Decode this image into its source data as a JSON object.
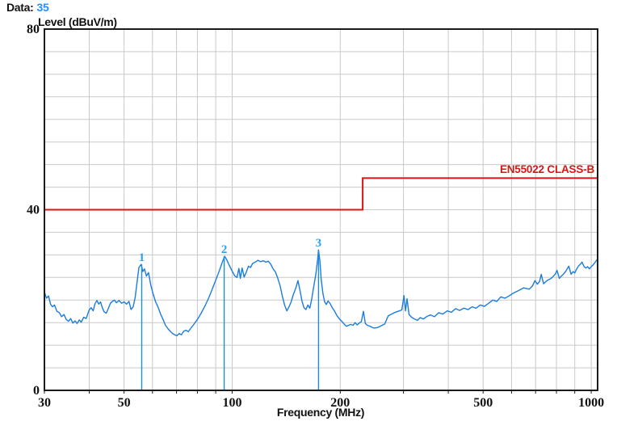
{
  "header": {
    "data_label": "Data:",
    "data_value": "35"
  },
  "chart_data": {
    "type": "line",
    "title": "Level (dBuV/m)",
    "xlabel": "Frequency (MHz)",
    "x_scale": "log",
    "xlim": [
      30,
      1042
    ],
    "ylim": [
      0,
      80
    ],
    "grid": true,
    "y_grid_step": 5,
    "y_ticks": [
      "80",
      "40",
      "0"
    ],
    "y_tick_values": [
      80,
      40,
      0
    ],
    "x_ticks": [
      "30",
      "50",
      "100",
      "200",
      "500",
      "1000"
    ],
    "x_tick_values": [
      30,
      50,
      100,
      200,
      500,
      1000
    ],
    "x_gridlines": [
      40,
      50,
      60,
      70,
      80,
      90,
      100,
      200,
      300,
      400,
      500,
      600,
      700,
      800,
      900,
      1000
    ],
    "colors": {
      "trace": "#1b7ce0",
      "limit": "#d81616",
      "marker_line": "#1b8ce8",
      "marker_label": "#2aa1f0",
      "value_accent": "#1e90ff",
      "grid": "#c9c9c9",
      "axis": "#1a1a1a"
    },
    "limit_line": {
      "label": "EN55022 CLASS-B",
      "points": [
        [
          30,
          40
        ],
        [
          231,
          40
        ],
        [
          231,
          47
        ],
        [
          1042,
          47
        ]
      ]
    },
    "markers": [
      {
        "label": "1",
        "freq": 56,
        "level_db": 27.9
      },
      {
        "label": "2",
        "freq": 95,
        "level_db": 29.7
      },
      {
        "label": "3",
        "freq": 174,
        "level_db": 31.1
      }
    ],
    "series": [
      {
        "name": "radiated-emission-trace",
        "points": [
          [
            30,
            21.8
          ],
          [
            30.4,
            20.4
          ],
          [
            30.8,
            20.9
          ],
          [
            31.2,
            19.1
          ],
          [
            31.6,
            18.5
          ],
          [
            32,
            18.9
          ],
          [
            32.5,
            17.5
          ],
          [
            33,
            17.2
          ],
          [
            33.5,
            16.3
          ],
          [
            34,
            16.8
          ],
          [
            34.5,
            15.7
          ],
          [
            35,
            15.3
          ],
          [
            35.5,
            15.9
          ],
          [
            36,
            14.9
          ],
          [
            36.5,
            15.4
          ],
          [
            37,
            14.8
          ],
          [
            37.5,
            15.6
          ],
          [
            38,
            15.1
          ],
          [
            38.6,
            16.2
          ],
          [
            39.2,
            15.9
          ],
          [
            40,
            17.8
          ],
          [
            40.5,
            18.3
          ],
          [
            41,
            17.6
          ],
          [
            41.5,
            19.2
          ],
          [
            42,
            19.9
          ],
          [
            42.5,
            19.1
          ],
          [
            43,
            19.6
          ],
          [
            43.5,
            18.3
          ],
          [
            44,
            17.4
          ],
          [
            44.6,
            17.1
          ],
          [
            45.2,
            18.1
          ],
          [
            45.8,
            19.3
          ],
          [
            46.4,
            19.7
          ],
          [
            47,
            20.0
          ],
          [
            47.6,
            19.4
          ],
          [
            48.4,
            19.9
          ],
          [
            49.2,
            19.3
          ],
          [
            50,
            19.6
          ],
          [
            50.8,
            19.1
          ],
          [
            51.6,
            19.7
          ],
          [
            52.3,
            17.9
          ],
          [
            53,
            18.5
          ],
          [
            53.7,
            20.6
          ],
          [
            54.3,
            23.8
          ],
          [
            55,
            27.2
          ],
          [
            55.8,
            27.9
          ],
          [
            56.4,
            26.3
          ],
          [
            57,
            26.9
          ],
          [
            57.7,
            25.3
          ],
          [
            58.5,
            26.1
          ],
          [
            59.3,
            23.4
          ],
          [
            60.2,
            21.4
          ],
          [
            61.2,
            19.6
          ],
          [
            62.2,
            18.4
          ],
          [
            63.2,
            16.9
          ],
          [
            64.2,
            15.7
          ],
          [
            65.2,
            14.4
          ],
          [
            66.2,
            13.7
          ],
          [
            67.2,
            13.1
          ],
          [
            68.2,
            12.6
          ],
          [
            69.2,
            12.3
          ],
          [
            70.2,
            12.1
          ],
          [
            71.2,
            12.6
          ],
          [
            72.2,
            12.3
          ],
          [
            73.3,
            13.1
          ],
          [
            74.4,
            13.3
          ],
          [
            75.5,
            13.0
          ],
          [
            76.6,
            13.7
          ],
          [
            78,
            14.5
          ],
          [
            80,
            15.7
          ],
          [
            82,
            17.1
          ],
          [
            84,
            18.7
          ],
          [
            86,
            20.4
          ],
          [
            88,
            22.4
          ],
          [
            90,
            24.4
          ],
          [
            92,
            26.4
          ],
          [
            94,
            28.5
          ],
          [
            95.3,
            29.7
          ],
          [
            96.6,
            28.9
          ],
          [
            98,
            27.8
          ],
          [
            100,
            26.4
          ],
          [
            101.8,
            25.3
          ],
          [
            103.2,
            25.0
          ],
          [
            104.4,
            27.0
          ],
          [
            105.4,
            24.8
          ],
          [
            106.6,
            27.1
          ],
          [
            108,
            25.1
          ],
          [
            109.5,
            26.2
          ],
          [
            111,
            27.5
          ],
          [
            112.5,
            27.2
          ],
          [
            114,
            28.1
          ],
          [
            116,
            28.4
          ],
          [
            118,
            28.8
          ],
          [
            120,
            28.5
          ],
          [
            122,
            28.7
          ],
          [
            124,
            28.4
          ],
          [
            126,
            28.6
          ],
          [
            128,
            28.0
          ],
          [
            130,
            26.9
          ],
          [
            132,
            26.2
          ],
          [
            134,
            24.8
          ],
          [
            136,
            23.2
          ],
          [
            138,
            20.8
          ],
          [
            140,
            18.9
          ],
          [
            142,
            17.6
          ],
          [
            144,
            18.5
          ],
          [
            146,
            19.6
          ],
          [
            148,
            21.2
          ],
          [
            150.5,
            22.7
          ],
          [
            152.5,
            24.3
          ],
          [
            154.5,
            22.1
          ],
          [
            156.5,
            19.8
          ],
          [
            158.5,
            18.3
          ],
          [
            160.5,
            17.9
          ],
          [
            162.5,
            18.9
          ],
          [
            164.5,
            18.2
          ],
          [
            166.5,
            20.1
          ],
          [
            168.5,
            22.7
          ],
          [
            171,
            25.7
          ],
          [
            173,
            29.0
          ],
          [
            174,
            31.1
          ],
          [
            175.5,
            28.7
          ],
          [
            177,
            24.6
          ],
          [
            179,
            21.4
          ],
          [
            181,
            19.6
          ],
          [
            183,
            19.0
          ],
          [
            185,
            19.8
          ],
          [
            187.5,
            19.2
          ],
          [
            190,
            18.3
          ],
          [
            193,
            17.5
          ],
          [
            196,
            16.5
          ],
          [
            199,
            15.8
          ],
          [
            202,
            15.3
          ],
          [
            205,
            14.7
          ],
          [
            208,
            14.2
          ],
          [
            211,
            14.4
          ],
          [
            214,
            14.6
          ],
          [
            217,
            14.4
          ],
          [
            220,
            15.0
          ],
          [
            223,
            14.5
          ],
          [
            226,
            14.9
          ],
          [
            229,
            15.2
          ],
          [
            232,
            17.5
          ],
          [
            235,
            14.8
          ],
          [
            238,
            14.4
          ],
          [
            242,
            14.2
          ],
          [
            248,
            13.8
          ],
          [
            254,
            13.9
          ],
          [
            260,
            14.3
          ],
          [
            266,
            14.7
          ],
          [
            272,
            16.5
          ],
          [
            278,
            16.9
          ],
          [
            285,
            17.3
          ],
          [
            292,
            17.6
          ],
          [
            297,
            17.8
          ],
          [
            301,
            21.0
          ],
          [
            304,
            17.6
          ],
          [
            307,
            20.3
          ],
          [
            311,
            16.8
          ],
          [
            316,
            16.2
          ],
          [
            322,
            15.8
          ],
          [
            328,
            15.5
          ],
          [
            334,
            16.1
          ],
          [
            341,
            15.8
          ],
          [
            349,
            16.4
          ],
          [
            357,
            16.7
          ],
          [
            366,
            16.3
          ],
          [
            376,
            17.2
          ],
          [
            386,
            16.9
          ],
          [
            397,
            17.6
          ],
          [
            408,
            17.3
          ],
          [
            419,
            18.1
          ],
          [
            430,
            17.7
          ],
          [
            442,
            18.2
          ],
          [
            454,
            17.9
          ],
          [
            466,
            18.5
          ],
          [
            478,
            18.2
          ],
          [
            491,
            18.9
          ],
          [
            504,
            18.6
          ],
          [
            518,
            19.3
          ],
          [
            532,
            20.0
          ],
          [
            546,
            19.7
          ],
          [
            560,
            20.7
          ],
          [
            575,
            20.4
          ],
          [
            590,
            20.9
          ],
          [
            606,
            21.5
          ],
          [
            628,
            22.1
          ],
          [
            648,
            22.7
          ],
          [
            672,
            22.4
          ],
          [
            686,
            23.1
          ],
          [
            697,
            24.3
          ],
          [
            708,
            23.5
          ],
          [
            718,
            24.1
          ],
          [
            726,
            25.7
          ],
          [
            737,
            23.6
          ],
          [
            746,
            24.0
          ],
          [
            756,
            24.4
          ],
          [
            770,
            24.7
          ],
          [
            783,
            25.2
          ],
          [
            795,
            25.8
          ],
          [
            803,
            26.6
          ],
          [
            815,
            24.8
          ],
          [
            826,
            25.3
          ],
          [
            836,
            25.7
          ],
          [
            850,
            26.4
          ],
          [
            866,
            27.5
          ],
          [
            879,
            25.7
          ],
          [
            890,
            26.3
          ],
          [
            900,
            26.0
          ],
          [
            910,
            26.8
          ],
          [
            921,
            27.5
          ],
          [
            932,
            27.9
          ],
          [
            943,
            28.4
          ],
          [
            955,
            27.4
          ],
          [
            966,
            27.1
          ],
          [
            977,
            27.4
          ],
          [
            988,
            26.9
          ],
          [
            1000,
            27.4
          ],
          [
            1012,
            27.8
          ],
          [
            1024,
            28.3
          ],
          [
            1035,
            28.8
          ],
          [
            1042,
            29.1
          ]
        ]
      }
    ]
  }
}
